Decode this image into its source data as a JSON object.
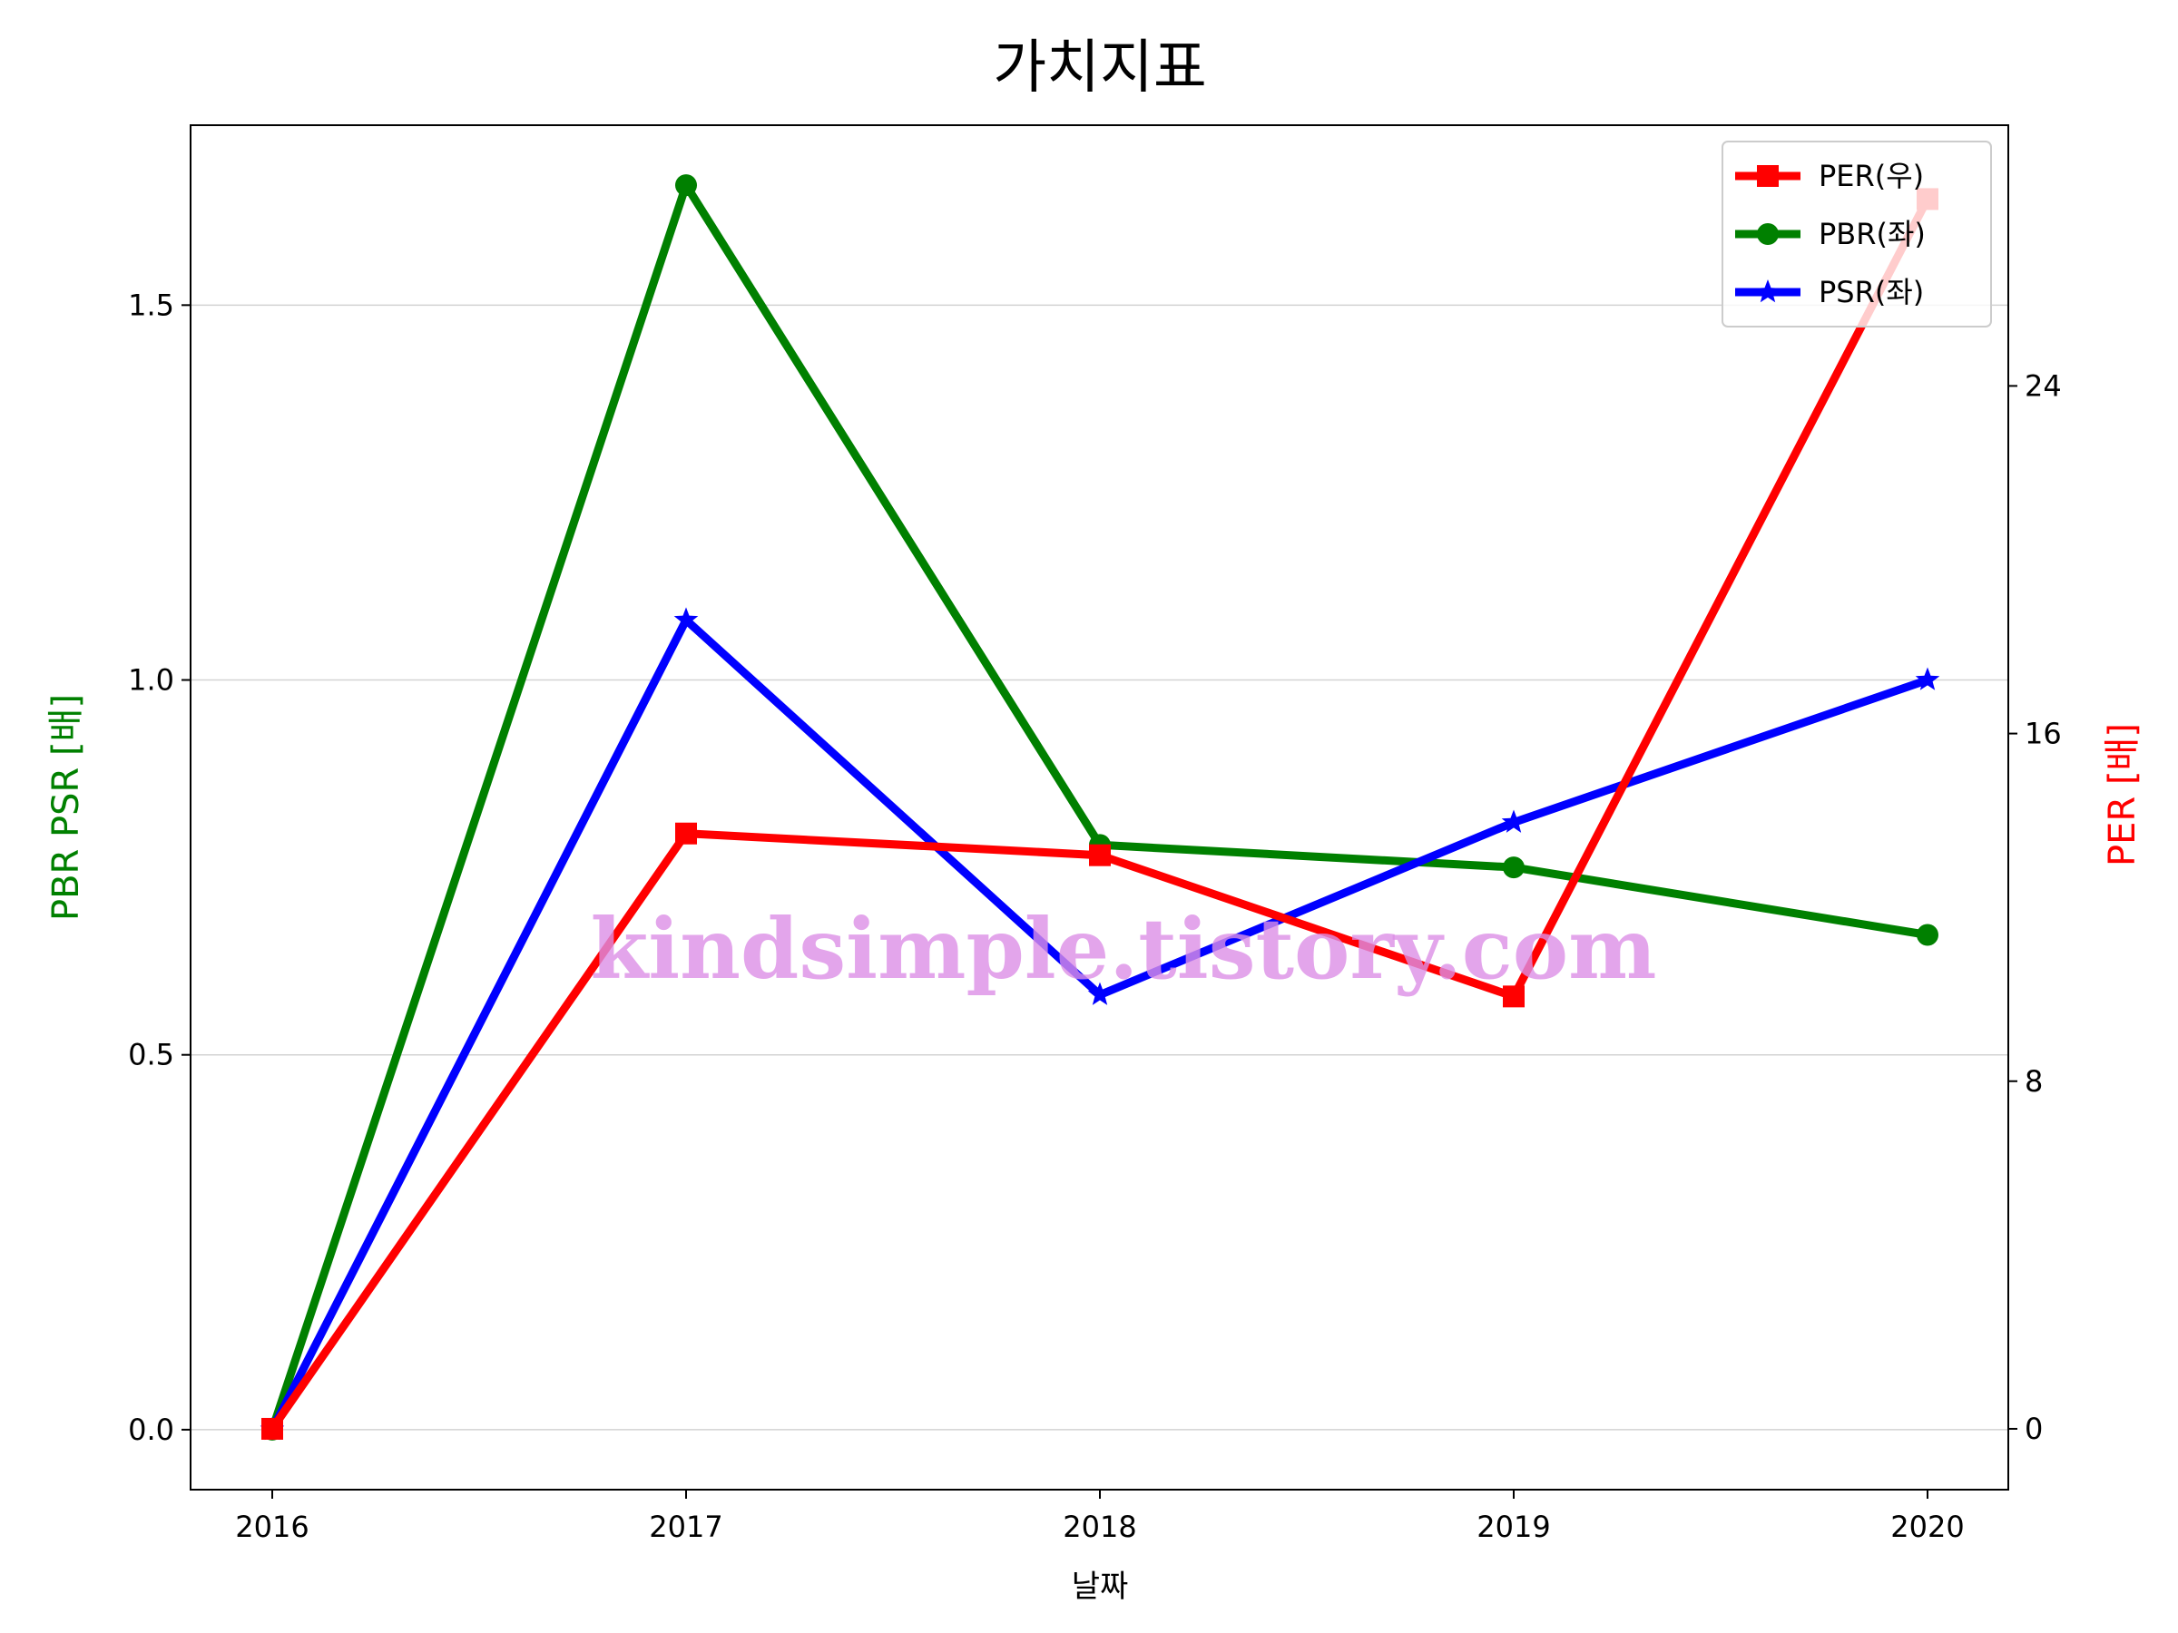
{
  "chart_data": {
    "type": "line",
    "title": "가치지표",
    "xlabel": "날짜",
    "ylabel_left": "PBR PSR [배]",
    "ylabel_right": "PER [배]",
    "x": [
      "2016",
      "2017",
      "2018",
      "2019",
      "2020"
    ],
    "ylim_left": [
      -0.08,
      1.74
    ],
    "yticks_left": [
      "0.0",
      "0.5",
      "1.0",
      "1.5"
    ],
    "ylim_right": [
      -1.4,
      30.0
    ],
    "yticks_right": [
      "0",
      "8",
      "16",
      "24"
    ],
    "grid": "horizontal (left axis)",
    "legend_position": "top-right",
    "series": [
      {
        "name": "PER(우)",
        "axis": "right",
        "marker": "square",
        "color": "#ff0000",
        "values": [
          0,
          13.7,
          13.2,
          9.95,
          28.3
        ]
      },
      {
        "name": "PBR(좌)",
        "axis": "left",
        "marker": "circle",
        "color": "#008000",
        "values": [
          0,
          1.66,
          0.78,
          0.75,
          0.66
        ]
      },
      {
        "name": "PSR(좌)",
        "axis": "left",
        "marker": "star",
        "color": "#0000ff",
        "values": [
          0,
          1.08,
          0.58,
          0.81,
          1.0
        ]
      }
    ],
    "watermark": "kindsimple.tistory.com"
  }
}
